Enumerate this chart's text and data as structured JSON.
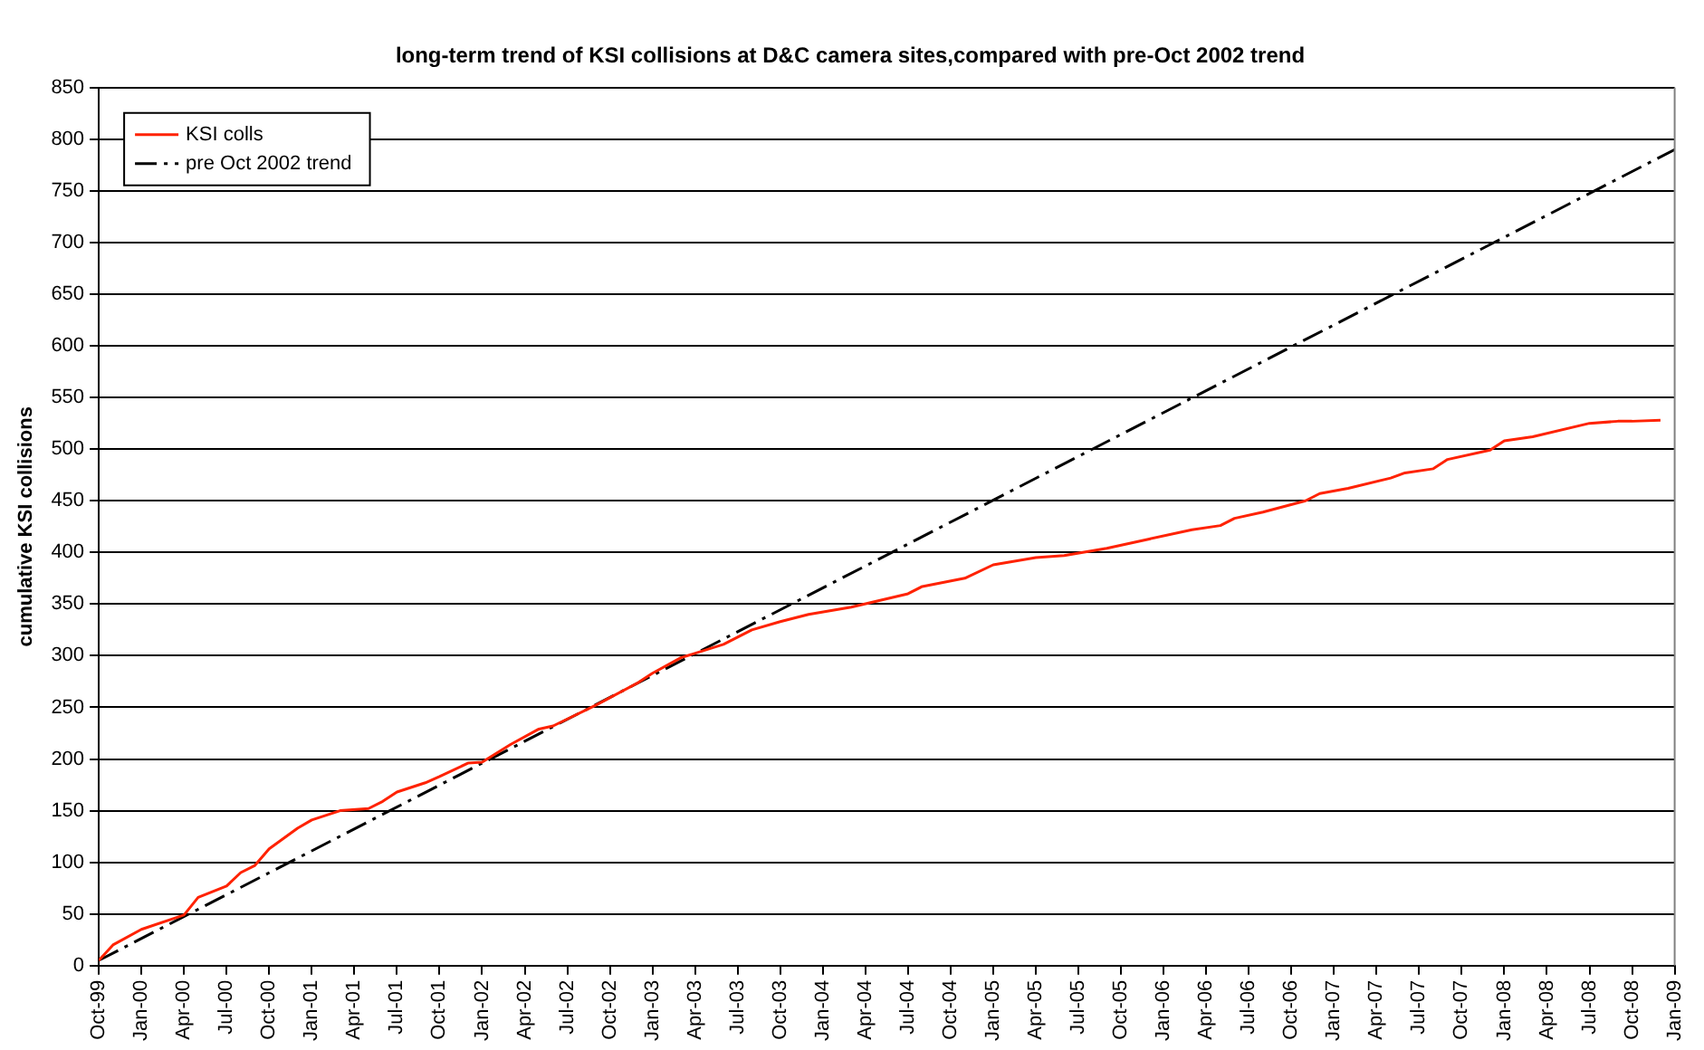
{
  "chart_data": {
    "type": "line",
    "title": "long-term trend of KSI collisions at D&C camera sites,compared with pre-Oct 2002 trend",
    "ylabel": "cumulative KSI collisions",
    "series": [
      {
        "name": "KSI colls",
        "color": "#ff2200",
        "line_style": "solid",
        "x": [
          "1999-10",
          "1999-11",
          "2000-01",
          "2000-04",
          "2000-05",
          "2000-07",
          "2000-08",
          "2000-09",
          "2000-10",
          "2000-12",
          "2001-01",
          "2001-03",
          "2001-05",
          "2001-06",
          "2001-07",
          "2001-09",
          "2001-10",
          "2001-12",
          "2002-01",
          "2002-03",
          "2002-05",
          "2002-06",
          "2002-09",
          "2002-12",
          "2003-01",
          "2003-03",
          "2003-06",
          "2003-08",
          "2003-10",
          "2003-12",
          "2004-03",
          "2004-07",
          "2004-08",
          "2004-11",
          "2005-01",
          "2005-04",
          "2005-06",
          "2005-09",
          "2005-12",
          "2006-03",
          "2006-05",
          "2006-06",
          "2006-08",
          "2006-11",
          "2006-12",
          "2007-02",
          "2007-05",
          "2007-06",
          "2007-08",
          "2007-09",
          "2007-12",
          "2008-01",
          "2008-03",
          "2008-07",
          "2008-09",
          "2008-10",
          "2008-12"
        ],
        "values": [
          5,
          20,
          35,
          49,
          66,
          77,
          90,
          97,
          113,
          133,
          141,
          150,
          152,
          159,
          168,
          177,
          183,
          196,
          197,
          214,
          229,
          232,
          252,
          274,
          283,
          298,
          311,
          325,
          333,
          340,
          347,
          360,
          367,
          375,
          388,
          395,
          397,
          404,
          413,
          422,
          426,
          433,
          439,
          450,
          457,
          462,
          472,
          477,
          481,
          490,
          499,
          508,
          512,
          525,
          527,
          527,
          528
        ]
      },
      {
        "name": "pre Oct 2002 trend",
        "color": "#000000",
        "line_style": "dashed",
        "x": [
          "1999-10",
          "2009-01"
        ],
        "values": [
          5,
          790
        ]
      }
    ],
    "xlim": [
      "1999-10",
      "2009-01"
    ],
    "xticks": [
      {
        "value": "1999-10",
        "label": "Oct-99"
      },
      {
        "value": "2000-01",
        "label": "Jan-00"
      },
      {
        "value": "2000-04",
        "label": "Apr-00"
      },
      {
        "value": "2000-07",
        "label": "Jul-00"
      },
      {
        "value": "2000-10",
        "label": "Oct-00"
      },
      {
        "value": "2001-01",
        "label": "Jan-01"
      },
      {
        "value": "2001-04",
        "label": "Apr-01"
      },
      {
        "value": "2001-07",
        "label": "Jul-01"
      },
      {
        "value": "2001-10",
        "label": "Oct-01"
      },
      {
        "value": "2002-01",
        "label": "Jan-02"
      },
      {
        "value": "2002-04",
        "label": "Apr-02"
      },
      {
        "value": "2002-07",
        "label": "Jul-02"
      },
      {
        "value": "2002-10",
        "label": "Oct-02"
      },
      {
        "value": "2003-01",
        "label": "Jan-03"
      },
      {
        "value": "2003-04",
        "label": "Apr-03"
      },
      {
        "value": "2003-07",
        "label": "Jul-03"
      },
      {
        "value": "2003-10",
        "label": "Oct-03"
      },
      {
        "value": "2004-01",
        "label": "Jan-04"
      },
      {
        "value": "2004-04",
        "label": "Apr-04"
      },
      {
        "value": "2004-07",
        "label": "Jul-04"
      },
      {
        "value": "2004-10",
        "label": "Oct-04"
      },
      {
        "value": "2005-01",
        "label": "Jan-05"
      },
      {
        "value": "2005-04",
        "label": "Apr-05"
      },
      {
        "value": "2005-07",
        "label": "Jul-05"
      },
      {
        "value": "2005-10",
        "label": "Oct-05"
      },
      {
        "value": "2006-01",
        "label": "Jan-06"
      },
      {
        "value": "2006-04",
        "label": "Apr-06"
      },
      {
        "value": "2006-07",
        "label": "Jul-06"
      },
      {
        "value": "2006-10",
        "label": "Oct-06"
      },
      {
        "value": "2007-01",
        "label": "Jan-07"
      },
      {
        "value": "2007-04",
        "label": "Apr-07"
      },
      {
        "value": "2007-07",
        "label": "Jul-07"
      },
      {
        "value": "2007-10",
        "label": "Oct-07"
      },
      {
        "value": "2008-01",
        "label": "Jan-08"
      },
      {
        "value": "2008-04",
        "label": "Apr-08"
      },
      {
        "value": "2008-07",
        "label": "Jul-08"
      },
      {
        "value": "2008-10",
        "label": "Oct-08"
      },
      {
        "value": "2009-01",
        "label": "Jan-09"
      }
    ],
    "ylim": [
      0,
      850
    ],
    "yticks": [
      0,
      50,
      100,
      150,
      200,
      250,
      300,
      350,
      400,
      450,
      500,
      550,
      600,
      650,
      700,
      750,
      800,
      850
    ],
    "grid": "y",
    "legend": "top left",
    "marker": "none"
  }
}
